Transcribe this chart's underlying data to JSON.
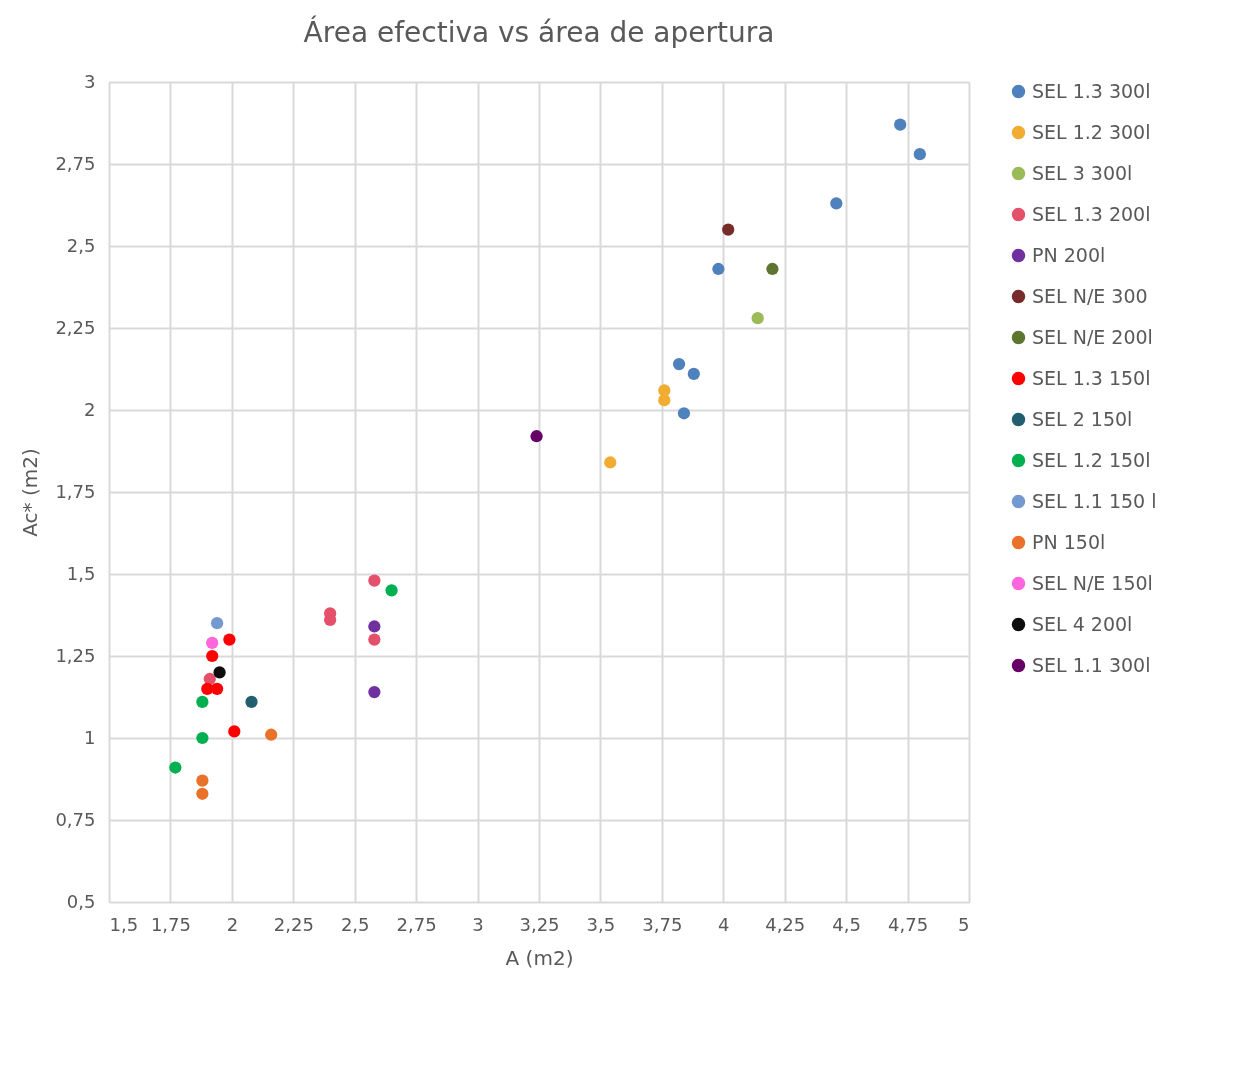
{
  "chart_data": {
    "type": "scatter",
    "title": "Área efectiva vs área de apertura",
    "xlabel": "A (m2)",
    "ylabel": "Ac* (m2)",
    "xlim": [
      1.5,
      5
    ],
    "ylim": [
      0.5,
      3
    ],
    "xticks": [
      {
        "value": 1.5,
        "label": "1,5"
      },
      {
        "value": 1.75,
        "label": "1,75"
      },
      2,
      {
        "value": 2.25,
        "label": "2,25"
      },
      {
        "value": 2.5,
        "label": "2,5"
      },
      {
        "value": 2.75,
        "label": "2,75"
      },
      3,
      {
        "value": 3.25,
        "label": "3,25"
      },
      {
        "value": 3.5,
        "label": "3,5"
      },
      {
        "value": 3.75,
        "label": "3,75"
      },
      4,
      {
        "value": 4.25,
        "label": "4,25"
      },
      {
        "value": 4.5,
        "label": "4,5"
      },
      {
        "value": 4.75,
        "label": "4,75"
      },
      5
    ],
    "yticks": [
      {
        "value": 0.5,
        "label": "0,5"
      },
      {
        "value": 0.75,
        "label": "0,75"
      },
      1,
      {
        "value": 1.25,
        "label": "1,25"
      },
      {
        "value": 1.5,
        "label": "1,5"
      },
      {
        "value": 1.75,
        "label": "1,75"
      },
      2,
      {
        "value": 2.25,
        "label": "2,25"
      },
      {
        "value": 2.5,
        "label": "2,5"
      },
      {
        "value": 2.75,
        "label": "2,75"
      },
      3
    ],
    "grid": true,
    "legend": "right",
    "marker": "circle",
    "series": [
      {
        "name": "SEL 1.3 300l",
        "color": "#4f81bd",
        "x": [
          4.72,
          4.8,
          4.46,
          3.98,
          3.82,
          3.88,
          3.84
        ],
        "values": [
          2.87,
          2.78,
          2.63,
          2.43,
          2.14,
          2.11,
          1.99
        ]
      },
      {
        "name": "SEL 1.2 300l",
        "color": "#f0ad32",
        "x": [
          3.54,
          3.76,
          3.76
        ],
        "values": [
          1.84,
          2.06,
          2.03
        ]
      },
      {
        "name": "SEL 3 300l",
        "color": "#9bbb59",
        "x": [
          4.14
        ],
        "values": [
          2.28
        ]
      },
      {
        "name": "SEL 1.3 200l",
        "color": "#e4506a",
        "x": [
          2.58,
          2.4,
          2.4,
          2.58,
          1.91
        ],
        "values": [
          1.48,
          1.38,
          1.36,
          1.3,
          1.18
        ]
      },
      {
        "name": "PN 200l",
        "color": "#7030a0",
        "x": [
          2.58,
          2.58
        ],
        "values": [
          1.34,
          1.14
        ]
      },
      {
        "name": "SEL N/E 300",
        "color": "#772c2a",
        "x": [
          4.02
        ],
        "values": [
          2.55
        ]
      },
      {
        "name": "SEL N/E 200l",
        "color": "#5e7530",
        "x": [
          4.2
        ],
        "values": [
          2.43
        ]
      },
      {
        "name": "SEL 1.3 150l",
        "color": "#ff0000",
        "x": [
          1.99,
          1.92,
          1.9,
          1.94,
          2.01
        ],
        "values": [
          1.3,
          1.25,
          1.15,
          1.15,
          1.02
        ]
      },
      {
        "name": "SEL 2 150l",
        "color": "#215f6e",
        "x": [
          2.08
        ],
        "values": [
          1.11
        ]
      },
      {
        "name": "SEL 1.2 150l",
        "color": "#00b050",
        "x": [
          2.65,
          1.88,
          1.88,
          1.77
        ],
        "values": [
          1.45,
          1.11,
          1.0,
          0.91
        ]
      },
      {
        "name": "SEL 1.1 150 l",
        "color": "#7399cf",
        "x": [
          1.94
        ],
        "values": [
          1.35
        ]
      },
      {
        "name": "PN 150l",
        "color": "#e9712a",
        "x": [
          2.16,
          1.88,
          1.88
        ],
        "values": [
          1.01,
          0.87,
          0.83
        ]
      },
      {
        "name": "SEL N/E 150l",
        "color": "#ff66dd",
        "x": [
          1.92
        ],
        "values": [
          1.29
        ]
      },
      {
        "name": "SEL 4 200l",
        "color": "#0d0d0d",
        "x": [
          1.95
        ],
        "values": [
          1.2
        ]
      },
      {
        "name": "SEL 1.1 300l",
        "color": "#660066",
        "x": [
          3.24
        ],
        "values": [
          1.92
        ]
      }
    ]
  }
}
